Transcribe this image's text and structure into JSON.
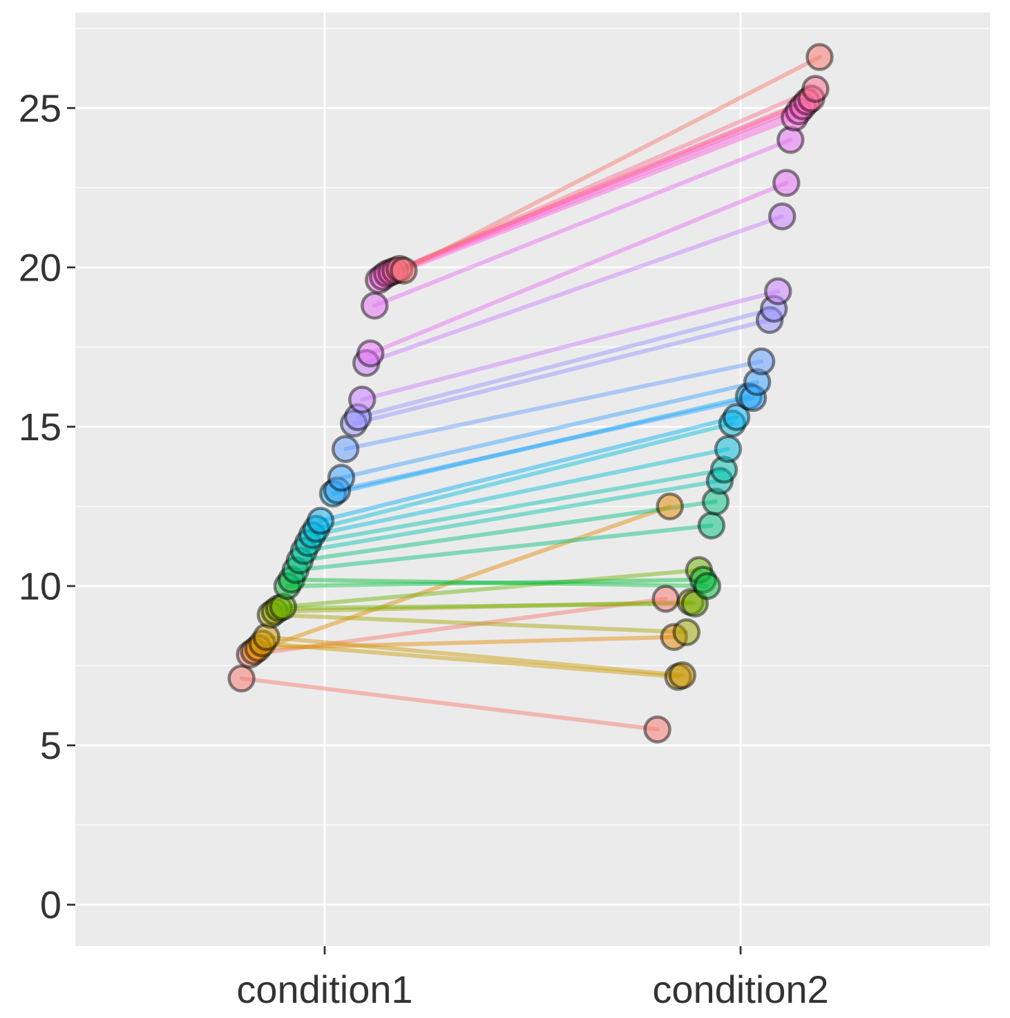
{
  "chart_data": {
    "type": "line",
    "x_categories": [
      "condition1",
      "condition2"
    ],
    "y_ticks": [
      "0",
      "5",
      "10",
      "15",
      "20",
      "25"
    ],
    "ylim": [
      -1.3,
      28
    ],
    "grid": true,
    "panel_background": "#EBEBEB",
    "pairs": [
      {
        "jitter1": -0.2,
        "y1": 7.1,
        "jitter2": -0.2,
        "y2": 5.5,
        "color": "#F8766D"
      },
      {
        "jitter1": -0.18,
        "y1": 7.85,
        "jitter2": -0.18,
        "y2": 9.6,
        "color": "#F8766D"
      },
      {
        "jitter1": -0.17,
        "y1": 7.95,
        "jitter2": -0.17,
        "y2": 12.5,
        "color": "#E58700"
      },
      {
        "jitter1": -0.16,
        "y1": 8.05,
        "jitter2": -0.16,
        "y2": 8.4,
        "color": "#E58700"
      },
      {
        "jitter1": -0.15,
        "y1": 8.2,
        "jitter2": -0.15,
        "y2": 7.15,
        "color": "#C99800"
      },
      {
        "jitter1": -0.14,
        "y1": 8.4,
        "jitter2": -0.14,
        "y2": 7.2,
        "color": "#C99800"
      },
      {
        "jitter1": -0.13,
        "y1": 9.1,
        "jitter2": -0.13,
        "y2": 8.55,
        "color": "#A3A500"
      },
      {
        "jitter1": -0.12,
        "y1": 9.2,
        "jitter2": -0.12,
        "y2": 9.5,
        "color": "#A3A500"
      },
      {
        "jitter1": -0.11,
        "y1": 9.3,
        "jitter2": -0.11,
        "y2": 9.45,
        "color": "#6BB100"
      },
      {
        "jitter1": -0.1,
        "y1": 9.35,
        "jitter2": -0.1,
        "y2": 10.5,
        "color": "#6BB100"
      },
      {
        "jitter1": -0.09,
        "y1": 10.0,
        "jitter2": -0.09,
        "y2": 10.2,
        "color": "#00BA38"
      },
      {
        "jitter1": -0.08,
        "y1": 10.2,
        "jitter2": -0.08,
        "y2": 10.0,
        "color": "#00BA38"
      },
      {
        "jitter1": -0.07,
        "y1": 10.5,
        "jitter2": -0.07,
        "y2": 11.9,
        "color": "#00BF7D"
      },
      {
        "jitter1": -0.06,
        "y1": 10.8,
        "jitter2": -0.06,
        "y2": 12.65,
        "color": "#00BF7D"
      },
      {
        "jitter1": -0.05,
        "y1": 11.1,
        "jitter2": -0.05,
        "y2": 13.3,
        "color": "#00C0AF"
      },
      {
        "jitter1": -0.04,
        "y1": 11.35,
        "jitter2": -0.04,
        "y2": 13.65,
        "color": "#00C0AF"
      },
      {
        "jitter1": -0.03,
        "y1": 11.6,
        "jitter2": -0.03,
        "y2": 14.3,
        "color": "#00BCD8"
      },
      {
        "jitter1": -0.02,
        "y1": 11.8,
        "jitter2": -0.02,
        "y2": 15.1,
        "color": "#00BCD8"
      },
      {
        "jitter1": -0.01,
        "y1": 12.05,
        "jitter2": -0.01,
        "y2": 15.3,
        "color": "#00B0F6"
      },
      {
        "jitter1": 0.02,
        "y1": 12.9,
        "jitter2": 0.02,
        "y2": 15.95,
        "color": "#00B0F6"
      },
      {
        "jitter1": 0.03,
        "y1": 13.0,
        "jitter2": 0.03,
        "y2": 15.9,
        "color": "#35A2FF"
      },
      {
        "jitter1": 0.04,
        "y1": 13.4,
        "jitter2": 0.04,
        "y2": 16.4,
        "color": "#35A2FF"
      },
      {
        "jitter1": 0.05,
        "y1": 14.3,
        "jitter2": 0.05,
        "y2": 17.05,
        "color": "#619CFF"
      },
      {
        "jitter1": 0.07,
        "y1": 15.1,
        "jitter2": 0.07,
        "y2": 18.35,
        "color": "#9590FF"
      },
      {
        "jitter1": 0.08,
        "y1": 15.3,
        "jitter2": 0.08,
        "y2": 18.7,
        "color": "#9590FF"
      },
      {
        "jitter1": 0.09,
        "y1": 15.85,
        "jitter2": 0.09,
        "y2": 19.25,
        "color": "#C77CFF"
      },
      {
        "jitter1": 0.1,
        "y1": 17.0,
        "jitter2": 0.1,
        "y2": 21.6,
        "color": "#C77CFF"
      },
      {
        "jitter1": 0.11,
        "y1": 17.3,
        "jitter2": 0.11,
        "y2": 22.65,
        "color": "#E76BF3"
      },
      {
        "jitter1": 0.12,
        "y1": 18.8,
        "jitter2": 0.12,
        "y2": 24.0,
        "color": "#E76BF3"
      },
      {
        "jitter1": 0.13,
        "y1": 19.6,
        "jitter2": 0.13,
        "y2": 24.7,
        "color": "#FA62DB"
      },
      {
        "jitter1": 0.14,
        "y1": 19.7,
        "jitter2": 0.14,
        "y2": 24.9,
        "color": "#FA62DB"
      },
      {
        "jitter1": 0.15,
        "y1": 19.8,
        "jitter2": 0.15,
        "y2": 25.05,
        "color": "#FF62BC"
      },
      {
        "jitter1": 0.16,
        "y1": 19.85,
        "jitter2": 0.16,
        "y2": 25.2,
        "color": "#FF62BC"
      },
      {
        "jitter1": 0.17,
        "y1": 19.9,
        "jitter2": 0.17,
        "y2": 25.3,
        "color": "#FF6C91"
      },
      {
        "jitter1": 0.18,
        "y1": 19.95,
        "jitter2": 0.18,
        "y2": 25.6,
        "color": "#FF6C91"
      },
      {
        "jitter1": 0.19,
        "y1": 19.9,
        "jitter2": 0.19,
        "y2": 26.6,
        "color": "#F8766D"
      }
    ]
  }
}
